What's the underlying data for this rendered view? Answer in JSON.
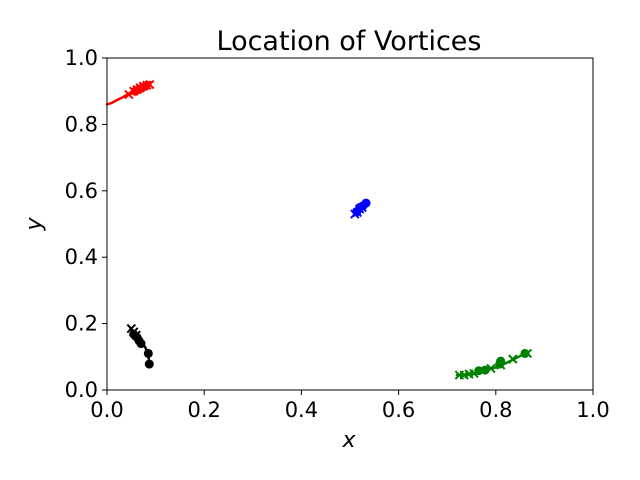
{
  "chart_data": {
    "type": "scatter",
    "title": "Location of Vortices",
    "xlabel": "x",
    "ylabel": "y",
    "xlim": [
      0.0,
      1.0
    ],
    "ylim": [
      0.0,
      1.0
    ],
    "xticks": [
      "0.0",
      "0.2",
      "0.4",
      "0.6",
      "0.8",
      "1.0"
    ],
    "yticks": [
      "0.0",
      "0.2",
      "0.4",
      "0.6",
      "0.8",
      "1.0"
    ],
    "grid": false,
    "series": [
      {
        "color": "#ff0000",
        "path": [
          [
            0.0,
            0.86
          ],
          [
            0.01,
            0.865
          ],
          [
            0.02,
            0.873
          ],
          [
            0.03,
            0.88
          ],
          [
            0.04,
            0.888
          ],
          [
            0.05,
            0.898
          ],
          [
            0.06,
            0.908
          ],
          [
            0.07,
            0.918
          ],
          [
            0.08,
            0.925
          ],
          [
            0.09,
            0.927
          ]
        ],
        "x_markers": [
          [
            0.045,
            0.89
          ],
          [
            0.055,
            0.9
          ],
          [
            0.062,
            0.905
          ],
          [
            0.068,
            0.91
          ],
          [
            0.075,
            0.915
          ],
          [
            0.082,
            0.918
          ],
          [
            0.088,
            0.92
          ]
        ],
        "o_markers": [
          [
            0.058,
            0.9
          ],
          [
            0.065,
            0.905
          ],
          [
            0.072,
            0.91
          ],
          [
            0.08,
            0.916
          ]
        ]
      },
      {
        "color": "#0000ff",
        "path": [
          [
            0.51,
            0.528
          ],
          [
            0.515,
            0.535
          ],
          [
            0.518,
            0.545
          ],
          [
            0.522,
            0.55
          ],
          [
            0.527,
            0.555
          ],
          [
            0.533,
            0.562
          ]
        ],
        "x_markers": [
          [
            0.51,
            0.53
          ],
          [
            0.515,
            0.535
          ],
          [
            0.52,
            0.545
          ],
          [
            0.525,
            0.55
          ]
        ],
        "o_markers": [
          [
            0.514,
            0.537
          ],
          [
            0.52,
            0.55
          ],
          [
            0.527,
            0.555
          ],
          [
            0.533,
            0.563
          ]
        ]
      },
      {
        "color": "#000000",
        "path": [
          [
            0.05,
            0.183
          ],
          [
            0.055,
            0.172
          ],
          [
            0.06,
            0.162
          ],
          [
            0.065,
            0.152
          ],
          [
            0.07,
            0.14
          ],
          [
            0.078,
            0.13
          ],
          [
            0.085,
            0.11
          ],
          [
            0.087,
            0.078
          ]
        ],
        "x_markers": [
          [
            0.05,
            0.185
          ],
          [
            0.055,
            0.175
          ],
          [
            0.06,
            0.165
          ]
        ],
        "o_markers": [
          [
            0.055,
            0.168
          ],
          [
            0.062,
            0.158
          ],
          [
            0.066,
            0.148
          ],
          [
            0.07,
            0.14
          ],
          [
            0.085,
            0.11
          ],
          [
            0.087,
            0.078
          ]
        ]
      },
      {
        "color": "#008000",
        "path": [
          [
            0.72,
            0.045
          ],
          [
            0.74,
            0.046
          ],
          [
            0.76,
            0.05
          ],
          [
            0.78,
            0.06
          ],
          [
            0.8,
            0.068
          ],
          [
            0.82,
            0.08
          ],
          [
            0.84,
            0.095
          ],
          [
            0.86,
            0.11
          ]
        ],
        "x_markers": [
          [
            0.725,
            0.045
          ],
          [
            0.735,
            0.045
          ],
          [
            0.745,
            0.048
          ],
          [
            0.755,
            0.05
          ],
          [
            0.79,
            0.065
          ],
          [
            0.81,
            0.075
          ],
          [
            0.835,
            0.093
          ],
          [
            0.865,
            0.11
          ]
        ],
        "o_markers": [
          [
            0.765,
            0.058
          ],
          [
            0.778,
            0.06
          ],
          [
            0.808,
            0.078
          ],
          [
            0.81,
            0.087
          ],
          [
            0.86,
            0.11
          ]
        ]
      }
    ]
  }
}
